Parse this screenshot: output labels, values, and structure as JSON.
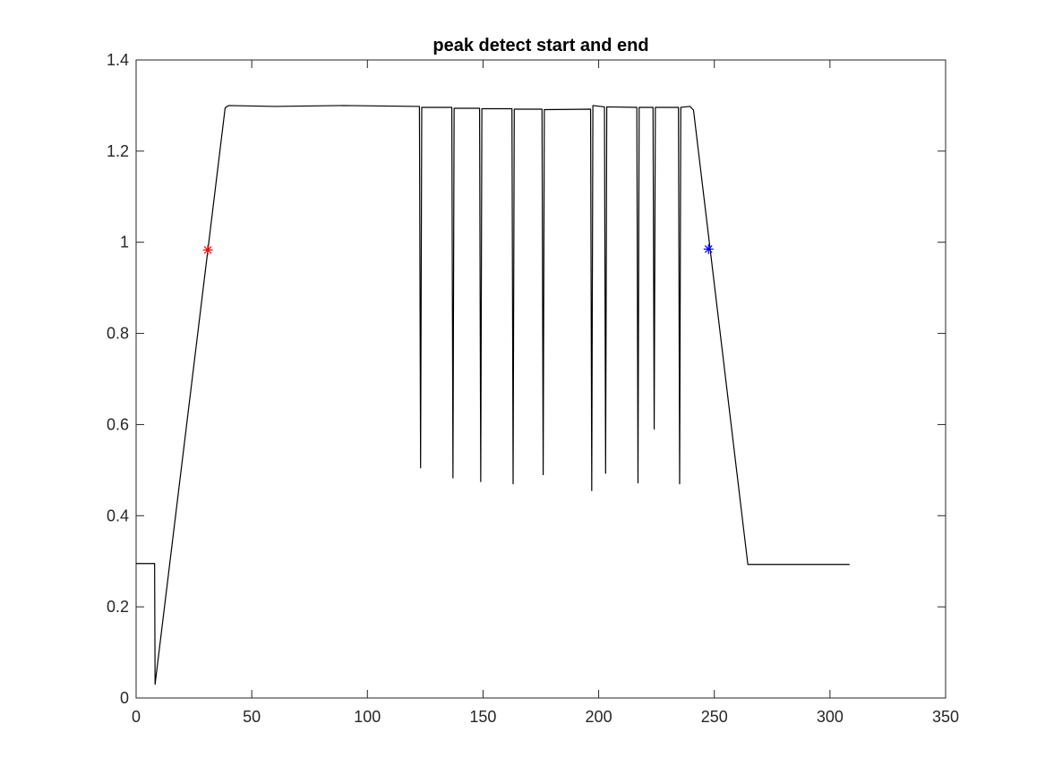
{
  "chart_data": {
    "type": "line",
    "title": "peak detect start and end",
    "xlabel": "",
    "ylabel": "",
    "xlim": [
      0,
      350
    ],
    "ylim": [
      0,
      1.4
    ],
    "xticks": [
      0,
      50,
      100,
      150,
      200,
      250,
      300,
      350
    ],
    "xtick_labels": [
      "0",
      "50",
      "100",
      "150",
      "200",
      "250",
      "300",
      "350"
    ],
    "yticks": [
      0,
      0.2,
      0.4,
      0.6,
      0.8,
      1.0,
      1.2,
      1.4
    ],
    "ytick_labels": [
      "0",
      "0.2",
      "0.4",
      "0.6",
      "0.8",
      "1",
      "1.2",
      "1.4"
    ],
    "grid": false,
    "box": true,
    "series": [
      {
        "color": "#000000",
        "points": [
          [
            0,
            0.295
          ],
          [
            8,
            0.295
          ],
          [
            8.2,
            0.03
          ],
          [
            38.5,
            1.295
          ],
          [
            40,
            1.3
          ],
          [
            60,
            1.298
          ],
          [
            90,
            1.3
          ],
          [
            122.5,
            1.298
          ],
          [
            123,
            0.505
          ],
          [
            123.5,
            1.296
          ],
          [
            136.5,
            1.296
          ],
          [
            137,
            0.483
          ],
          [
            137.5,
            1.294
          ],
          [
            148.5,
            1.294
          ],
          [
            149,
            0.475
          ],
          [
            149.5,
            1.293
          ],
          [
            162.5,
            1.293
          ],
          [
            163,
            0.47
          ],
          [
            163.5,
            1.292
          ],
          [
            175.5,
            1.292
          ],
          [
            176,
            0.49
          ],
          [
            176.5,
            1.291
          ],
          [
            196.5,
            1.292
          ],
          [
            197,
            0.455
          ],
          [
            197.5,
            1.3
          ],
          [
            202.5,
            1.297
          ],
          [
            203,
            0.493
          ],
          [
            203.5,
            1.297
          ],
          [
            216.5,
            1.296
          ],
          [
            217,
            0.472
          ],
          [
            217.5,
            1.296
          ],
          [
            223.5,
            1.296
          ],
          [
            224,
            0.59
          ],
          [
            224.5,
            1.296
          ],
          [
            234.5,
            1.296
          ],
          [
            235,
            0.47
          ],
          [
            235.5,
            1.296
          ],
          [
            239.5,
            1.298
          ],
          [
            241,
            1.29
          ],
          [
            264.5,
            0.293
          ],
          [
            308.5,
            0.293
          ]
        ]
      }
    ],
    "markers": [
      {
        "x": 31,
        "y": 0.983,
        "symbol": "*",
        "color": "#ff0000"
      },
      {
        "x": 247.5,
        "y": 0.985,
        "symbol": "*",
        "color": "#0000ff"
      }
    ]
  }
}
